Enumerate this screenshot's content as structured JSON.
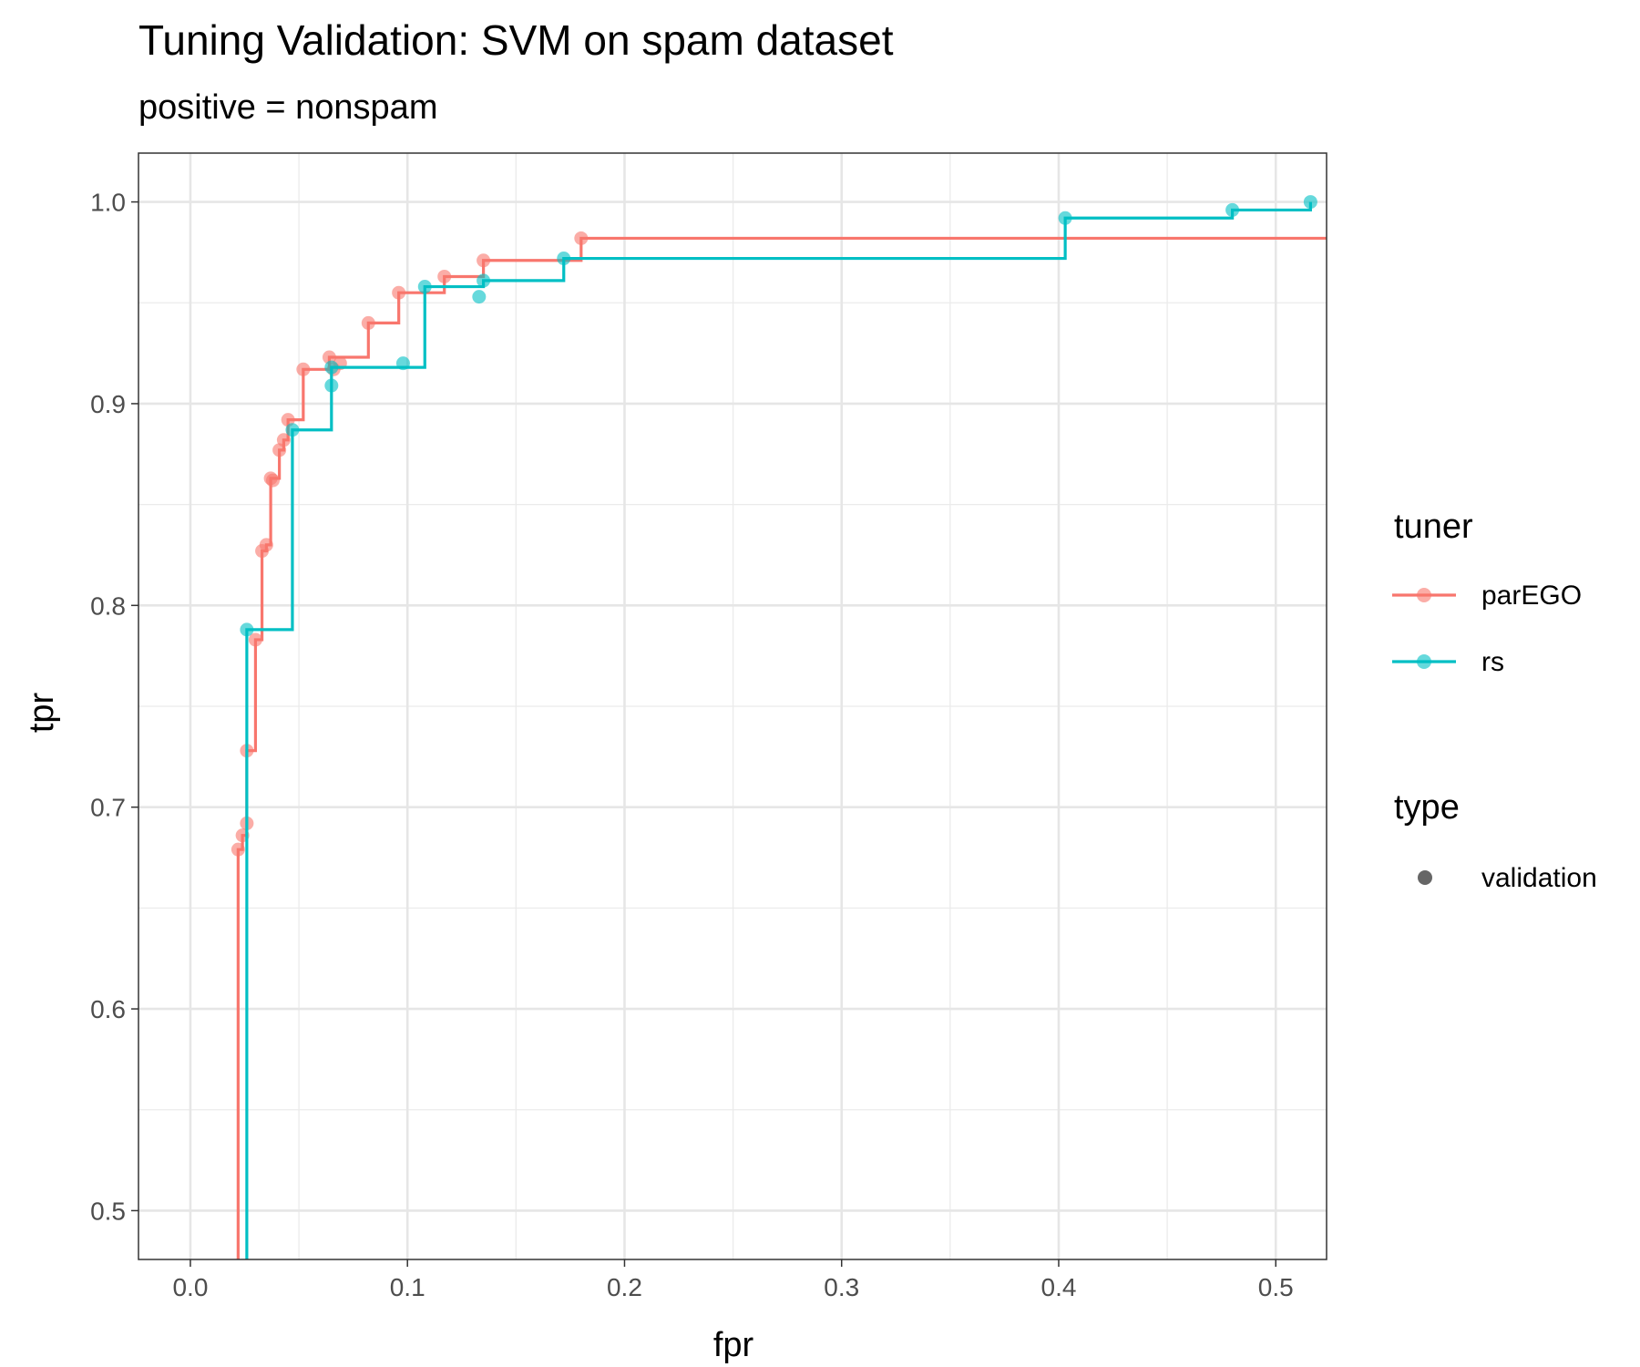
{
  "chart_data": {
    "type": "line",
    "title": "Tuning Validation: SVM on spam dataset",
    "subtitle": "positive = nonspam",
    "xlabel": "fpr",
    "ylabel": "tpr",
    "xlim": [
      -0.0239,
      0.5234
    ],
    "ylim": [
      0.4758,
      1.0242
    ],
    "x_ticks": [
      0.0,
      0.1,
      0.2,
      0.3,
      0.4,
      0.5
    ],
    "x_tick_labels": [
      "0.0",
      "0.1",
      "0.2",
      "0.3",
      "0.4",
      "0.5"
    ],
    "y_ticks": [
      0.5,
      0.6,
      0.7,
      0.8,
      0.9,
      1.0
    ],
    "y_tick_labels": [
      "0.5",
      "0.6",
      "0.7",
      "0.8",
      "0.9",
      "1.0"
    ],
    "grid": true,
    "legend_position": "right",
    "legend": {
      "tuner_title": "tuner",
      "type_title": "type",
      "type_label": "validation"
    },
    "series": [
      {
        "name": "parEGO",
        "color": "#F8766D",
        "points": [
          [
            0.022,
            0.679
          ],
          [
            0.024,
            0.686
          ],
          [
            0.026,
            0.692
          ],
          [
            0.026,
            0.728
          ],
          [
            0.03,
            0.783
          ],
          [
            0.033,
            0.827
          ],
          [
            0.035,
            0.83
          ],
          [
            0.037,
            0.863
          ],
          [
            0.038,
            0.862
          ],
          [
            0.041,
            0.877
          ],
          [
            0.043,
            0.882
          ],
          [
            0.045,
            0.892
          ],
          [
            0.052,
            0.917
          ],
          [
            0.064,
            0.923
          ],
          [
            0.066,
            0.917
          ],
          [
            0.069,
            0.92
          ],
          [
            0.082,
            0.94
          ],
          [
            0.096,
            0.955
          ],
          [
            0.117,
            0.963
          ],
          [
            0.135,
            0.971
          ],
          [
            0.18,
            0.982
          ]
        ],
        "steps": [
          [
            0.022,
            0.475
          ],
          [
            0.022,
            0.679
          ],
          [
            0.024,
            0.686
          ],
          [
            0.026,
            0.728
          ],
          [
            0.03,
            0.783
          ],
          [
            0.033,
            0.827
          ],
          [
            0.035,
            0.83
          ],
          [
            0.037,
            0.863
          ],
          [
            0.041,
            0.877
          ],
          [
            0.043,
            0.882
          ],
          [
            0.045,
            0.892
          ],
          [
            0.052,
            0.917
          ],
          [
            0.064,
            0.923
          ],
          [
            0.082,
            0.94
          ],
          [
            0.096,
            0.955
          ],
          [
            0.117,
            0.963
          ],
          [
            0.135,
            0.971
          ],
          [
            0.18,
            0.982
          ],
          [
            0.524,
            0.982
          ]
        ]
      },
      {
        "name": "rs",
        "color": "#00BFC4",
        "points": [
          [
            0.026,
            0.788
          ],
          [
            0.047,
            0.887
          ],
          [
            0.065,
            0.909
          ],
          [
            0.065,
            0.918
          ],
          [
            0.098,
            0.92
          ],
          [
            0.108,
            0.958
          ],
          [
            0.133,
            0.953
          ],
          [
            0.135,
            0.961
          ],
          [
            0.172,
            0.972
          ],
          [
            0.403,
            0.992
          ],
          [
            0.48,
            0.996
          ],
          [
            0.516,
            1.0
          ]
        ],
        "steps": [
          [
            0.026,
            0.475
          ],
          [
            0.026,
            0.788
          ],
          [
            0.047,
            0.887
          ],
          [
            0.065,
            0.918
          ],
          [
            0.108,
            0.958
          ],
          [
            0.135,
            0.961
          ],
          [
            0.172,
            0.972
          ],
          [
            0.403,
            0.992
          ],
          [
            0.48,
            0.996
          ],
          [
            0.516,
            1.0
          ]
        ]
      }
    ]
  }
}
